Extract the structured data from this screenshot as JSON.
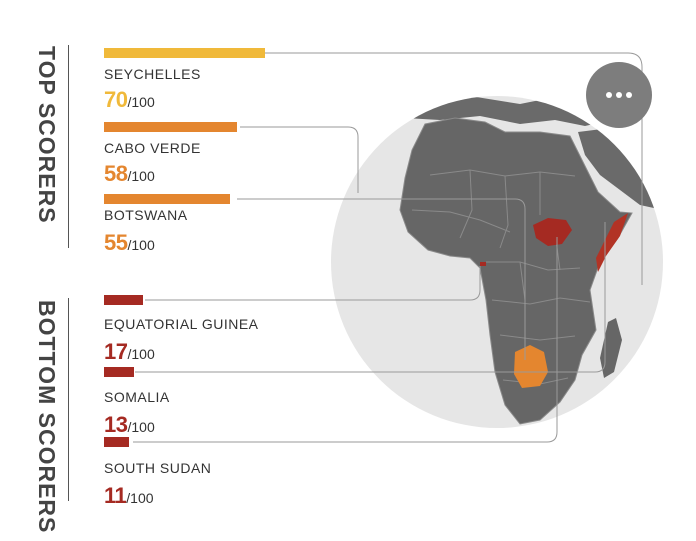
{
  "sections": {
    "top": {
      "title": "TOP SCORERS"
    },
    "bottom": {
      "title": "BOTTOM SCORERS"
    }
  },
  "scorers": [
    {
      "country": "SEYCHELLES",
      "score": "70",
      "denominator": "/100",
      "value": 70,
      "color": "#f0b93a",
      "group": "top"
    },
    {
      "country": "CABO VERDE",
      "score": "58",
      "denominator": "/100",
      "value": 58,
      "color": "#e4862f",
      "group": "top"
    },
    {
      "country": "BOTSWANA",
      "score": "55",
      "denominator": "/100",
      "value": 55,
      "color": "#e4862f",
      "group": "top"
    },
    {
      "country": "EQUATORIAL GUINEA",
      "score": "17",
      "denominator": "/100",
      "value": 17,
      "color": "#a52a22",
      "group": "bottom"
    },
    {
      "country": "SOMALIA",
      "score": "13",
      "denominator": "/100",
      "value": 13,
      "color": "#a52a22",
      "group": "bottom"
    },
    {
      "country": "SOUTH SUDAN",
      "score": "11",
      "denominator": "/100",
      "value": 11,
      "color": "#a52a22",
      "group": "bottom"
    }
  ],
  "map": {
    "continent_color": "#666666",
    "globe_color": "#e6e6e6",
    "border_color": "#8a8a8a"
  },
  "menu": {
    "icon": "more-horizontal-icon"
  }
}
